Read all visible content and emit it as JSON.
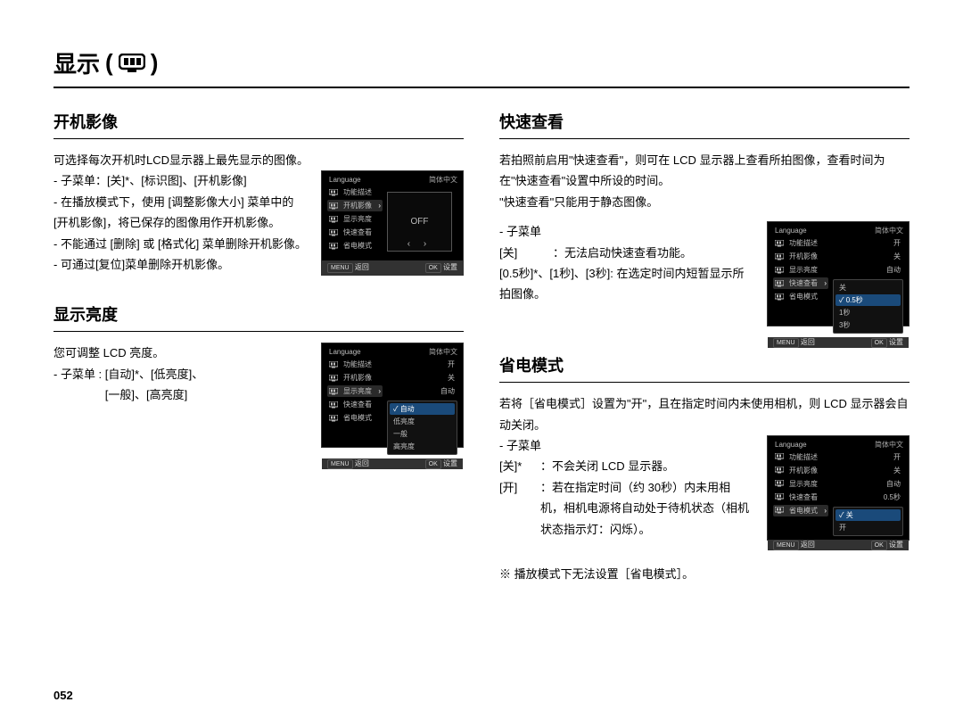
{
  "page": {
    "title": "显示",
    "number": "052",
    "background_color": "#ffffff",
    "text_color": "#000000"
  },
  "lcd_common": {
    "menu_items": [
      "Language",
      "功能描述",
      "开机影像",
      "显示亮度",
      "快速查看",
      "省电模式"
    ],
    "footer_back_label": "返回",
    "footer_back_key": "MENU",
    "footer_set_label": "设置",
    "footer_set_key": "OK",
    "lang_value": "简体中文",
    "bg": "#000000",
    "text": "#bdbdbd",
    "highlight": "#1a4a7a",
    "footer_bg": "#323232"
  },
  "sections": {
    "startup": {
      "title": "开机影像",
      "intro": "可选择每次开机时LCD显示器上最先显示的图像。",
      "bullets": [
        "- 子菜单：[关]*、[标识图]、[开机影像]",
        "- 在播放模式下，使用 [调整影像大小] 菜单中的 [开机影像]，将已保存的图像用作开机影像。",
        "- 不能通过 [删除] 或 [格式化] 菜单删除开机影像。",
        "- 可通过[复位]菜单删除开机影像。"
      ],
      "lcd": {
        "highlight_index": 2,
        "preview_label": "OFF"
      }
    },
    "brightness": {
      "title": "显示亮度",
      "intro": "您可调整 LCD 亮度。",
      "bullet": "- 子菜单 : [自动]*、[低亮度]、\n                [一般]、[高亮度]",
      "lcd": {
        "highlight_index": 3,
        "side_values": [
          "开",
          "关",
          "自动"
        ],
        "options": [
          "自动",
          "低亮度",
          "一般",
          "高亮度"
        ],
        "active_option_index": 0
      }
    },
    "quickview": {
      "title": "快速查看",
      "intro": "若拍照前启用\"快速查看\"，则可在 LCD 显示器上查看所拍图像，查看时间为在\"快速查看\"设置中所设的时间。\n\"快速查看\"只能用于静态图像。",
      "sub_label": "- 子菜单",
      "rows": [
        {
          "key": "[关]",
          "text": "：无法启动快速查看功能。"
        },
        {
          "key": "[0.5秒]*、[1秒]、[3秒]",
          "text": ": 在选定时间内短暂显示所拍图像。"
        }
      ],
      "lcd": {
        "highlight_index": 4,
        "side_values": [
          "开",
          "关",
          "自动"
        ],
        "options": [
          "关",
          "0.5秒",
          "1秒",
          "3秒"
        ],
        "active_option_index": 1
      }
    },
    "powersave": {
      "title": "省电模式",
      "intro": "若将［省电模式］设置为\"开\"，且在指定时间内未使用相机，则 LCD 显示器会自动关闭。",
      "sub_label": "- 子菜单",
      "rows": [
        {
          "key": "[关]*",
          "text": "：不会关闭 LCD 显示器。"
        },
        {
          "key": "[开]",
          "text": "：若在指定时间（约 30秒）内未用相机，相机电源将自动处于待机状态（相机状态指示灯：闪烁）。"
        }
      ],
      "note": "※ 播放模式下无法设置［省电模式］。",
      "lcd": {
        "highlight_index": 5,
        "side_values": [
          "开",
          "关",
          "自动",
          "0.5秒"
        ],
        "options": [
          "关",
          "开"
        ],
        "active_option_index": 0
      }
    }
  }
}
